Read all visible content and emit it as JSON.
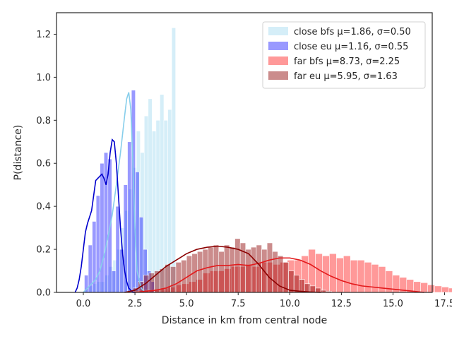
{
  "chart_data": {
    "type": "histogram",
    "xlabel": "Distance in km from central node",
    "ylabel": "P(distance)",
    "xlim": [
      -1.3,
      16.9
    ],
    "ylim": [
      0,
      1.3
    ],
    "xticks": [
      0.0,
      2.5,
      5.0,
      7.5,
      10.0,
      12.5,
      15.0,
      17.5
    ],
    "xtick_labels": [
      "0.0",
      "2.5",
      "5.0",
      "7.5",
      "10.0",
      "12.5",
      "15.0",
      "17.5"
    ],
    "yticks": [
      0.0,
      0.2,
      0.4,
      0.6,
      0.8,
      1.0,
      1.2
    ],
    "ytick_labels": [
      "0.0",
      "0.2",
      "0.4",
      "0.6",
      "0.8",
      "1.0",
      "1.2"
    ],
    "grid": false,
    "legend_position": "top-right",
    "series": [
      {
        "name": "close bfs μ=1.86, σ=0.50",
        "bar_color": "#87ceeb",
        "bar_opacity": 0.35,
        "line_color": "#87ceeb",
        "bin_start": 0.1,
        "bin_width": 0.19,
        "heights": [
          0.02,
          0.03,
          0.04,
          0.05,
          0.05,
          0.08,
          0.12,
          0.15,
          0.2,
          0.3,
          0.38,
          0.48,
          0.58,
          0.75,
          0.65,
          0.82,
          0.9,
          0.75,
          0.8,
          0.92,
          0.8,
          0.85,
          1.23
        ],
        "kde_x": [
          0.0,
          0.2,
          0.4,
          0.6,
          0.8,
          1.0,
          1.2,
          1.4,
          1.6,
          1.8,
          2.0,
          2.1,
          2.2,
          2.3,
          2.4,
          2.5,
          2.6,
          2.8,
          3.0
        ],
        "kde_y": [
          0.0,
          0.02,
          0.04,
          0.06,
          0.1,
          0.17,
          0.26,
          0.36,
          0.5,
          0.65,
          0.82,
          0.9,
          0.93,
          0.85,
          0.6,
          0.3,
          0.1,
          0.02,
          0.0
        ]
      },
      {
        "name": "close eu μ=1.16, σ=0.55",
        "bar_color": "#0000ff",
        "bar_opacity": 0.4,
        "line_color": "#0000cd",
        "bin_start": 0.05,
        "bin_width": 0.19,
        "heights": [
          0.08,
          0.22,
          0.33,
          0.45,
          0.6,
          0.65,
          0.62,
          0.1,
          0.4,
          0.2,
          0.5,
          0.7,
          0.94,
          0.56,
          0.35,
          0.2,
          0.1,
          0.05
        ],
        "kde_x": [
          -0.4,
          -0.3,
          -0.2,
          -0.1,
          0.0,
          0.1,
          0.2,
          0.3,
          0.4,
          0.5,
          0.6,
          0.7,
          0.8,
          0.9,
          1.0,
          1.1,
          1.2,
          1.3,
          1.4,
          1.5,
          1.6,
          1.7,
          1.8,
          1.9,
          2.0,
          2.1,
          2.2,
          2.3,
          2.4,
          2.5
        ],
        "kde_y": [
          0.0,
          0.02,
          0.06,
          0.12,
          0.2,
          0.28,
          0.32,
          0.35,
          0.38,
          0.45,
          0.52,
          0.53,
          0.54,
          0.55,
          0.53,
          0.5,
          0.55,
          0.65,
          0.71,
          0.7,
          0.6,
          0.45,
          0.3,
          0.18,
          0.1,
          0.05,
          0.02,
          0.01,
          0.0,
          0.0
        ]
      },
      {
        "name": "far bfs μ=8.73, σ=2.25",
        "bar_color": "#ff0000",
        "bar_opacity": 0.4,
        "line_color": "#e31a1c",
        "bin_start": 2.4,
        "bin_width": 0.34,
        "heights": [
          0.005,
          0.01,
          0.01,
          0.015,
          0.02,
          0.025,
          0.035,
          0.04,
          0.05,
          0.06,
          0.09,
          0.1,
          0.1,
          0.11,
          0.12,
          0.12,
          0.13,
          0.12,
          0.14,
          0.14,
          0.13,
          0.14,
          0.15,
          0.15,
          0.17,
          0.2,
          0.18,
          0.17,
          0.18,
          0.16,
          0.17,
          0.15,
          0.15,
          0.14,
          0.13,
          0.12,
          0.1,
          0.08,
          0.07,
          0.06,
          0.05,
          0.045,
          0.035,
          0.03,
          0.025,
          0.02,
          0.015,
          0.01
        ],
        "kde_x": [
          2.5,
          3.0,
          3.5,
          4.0,
          4.5,
          5.0,
          5.5,
          6.0,
          6.5,
          7.0,
          7.5,
          8.0,
          8.5,
          9.0,
          9.5,
          10.0,
          10.5,
          11.0,
          11.5,
          12.0,
          12.5,
          13.0,
          13.5,
          14.0,
          14.5,
          15.0,
          15.5,
          16.0,
          16.5
        ],
        "kde_y": [
          0.0,
          0.005,
          0.01,
          0.02,
          0.04,
          0.07,
          0.1,
          0.115,
          0.125,
          0.125,
          0.13,
          0.125,
          0.135,
          0.15,
          0.16,
          0.16,
          0.15,
          0.13,
          0.1,
          0.075,
          0.055,
          0.04,
          0.03,
          0.025,
          0.02,
          0.015,
          0.01,
          0.005,
          0.0
        ]
      },
      {
        "name": "far eu μ=5.95, σ=1.63",
        "bar_color": "#8b0000",
        "bar_opacity": 0.45,
        "line_color": "#8b0000",
        "bin_start": 2.4,
        "bin_width": 0.26,
        "heights": [
          0.02,
          0.05,
          0.08,
          0.09,
          0.1,
          0.11,
          0.13,
          0.12,
          0.14,
          0.15,
          0.17,
          0.18,
          0.19,
          0.2,
          0.21,
          0.22,
          0.19,
          0.22,
          0.21,
          0.25,
          0.23,
          0.2,
          0.21,
          0.22,
          0.2,
          0.23,
          0.19,
          0.17,
          0.14,
          0.1,
          0.08,
          0.06,
          0.04,
          0.03,
          0.02,
          0.01,
          0.005
        ],
        "kde_x": [
          2.0,
          2.5,
          3.0,
          3.5,
          4.0,
          4.5,
          5.0,
          5.5,
          6.0,
          6.5,
          7.0,
          7.5,
          8.0,
          8.5,
          9.0,
          9.5,
          10.0,
          10.5,
          11.0,
          11.5
        ],
        "kde_y": [
          0.0,
          0.01,
          0.04,
          0.08,
          0.12,
          0.15,
          0.18,
          0.2,
          0.21,
          0.215,
          0.21,
          0.2,
          0.18,
          0.13,
          0.07,
          0.03,
          0.01,
          0.005,
          0.002,
          0.0
        ]
      }
    ]
  }
}
